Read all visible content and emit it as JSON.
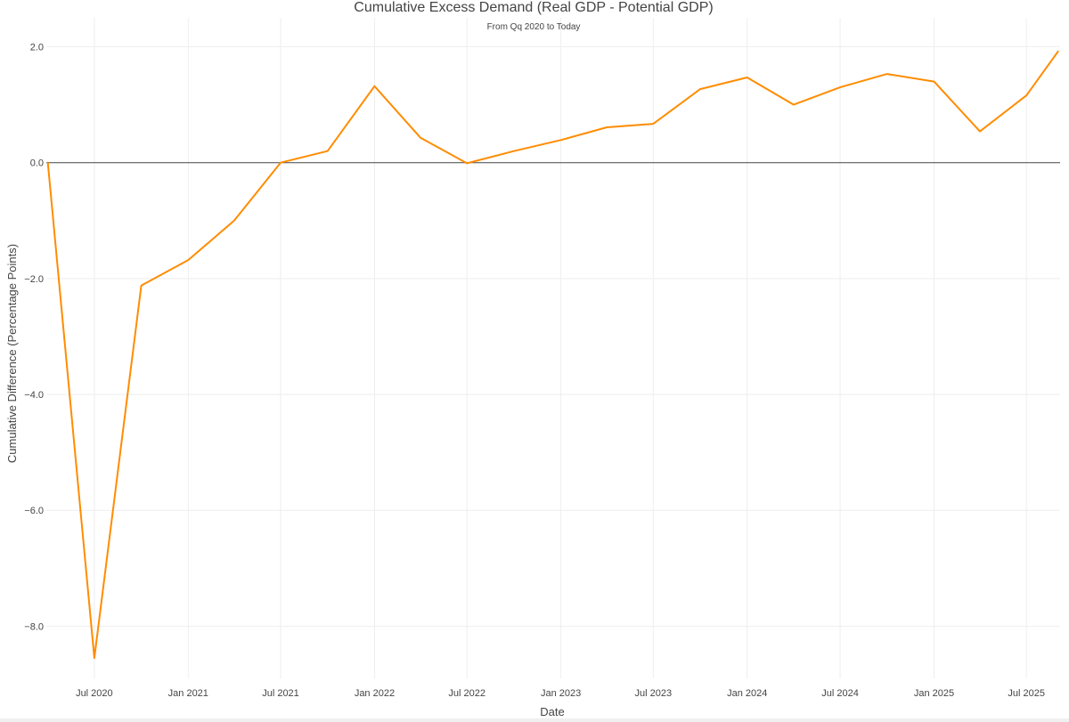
{
  "chart_data": {
    "type": "line",
    "title": "Cumulative Excess Demand (Real GDP - Potential GDP)",
    "subtitle": "From Qq 2020 to Today",
    "xlabel": "Date",
    "ylabel": "Cumulative Difference (Percentage Points)",
    "x_ticks": [
      "Jul 2020",
      "Jan 2021",
      "Jul 2021",
      "Jan 2022",
      "Jul 2022",
      "Jan 2023",
      "Jul 2023",
      "Jan 2024",
      "Jul 2024",
      "Jan 2025",
      "Jul 2025"
    ],
    "y_ticks": [
      "2.0",
      "0.0",
      "−2.0",
      "−4.0",
      "−6.0",
      "−8.0"
    ],
    "xlim": [
      "2020-03-29",
      "2025-09-05"
    ],
    "ylim": [
      -8.9,
      2.5
    ],
    "grid": true,
    "reference_line": 0,
    "series": [
      {
        "color": "#ff8c00",
        "x": [
          "2020-04-01",
          "2020-07-01",
          "2020-10-01",
          "2021-01-01",
          "2021-04-01",
          "2021-07-01",
          "2021-10-01",
          "2022-01-01",
          "2022-04-01",
          "2022-07-01",
          "2022-10-01",
          "2023-01-01",
          "2023-04-01",
          "2023-07-01",
          "2023-10-01",
          "2024-01-01",
          "2024-04-01",
          "2024-07-01",
          "2024-10-01",
          "2025-01-01",
          "2025-04-01",
          "2025-07-01",
          "2025-09-01"
        ],
        "values": [
          0.0,
          -8.55,
          -2.12,
          -1.68,
          -1.0,
          0.0,
          0.2,
          1.32,
          0.43,
          -0.01,
          0.2,
          0.39,
          0.61,
          0.67,
          1.27,
          1.47,
          1.0,
          1.3,
          1.53,
          1.4,
          0.54,
          1.16,
          1.92
        ]
      }
    ]
  }
}
